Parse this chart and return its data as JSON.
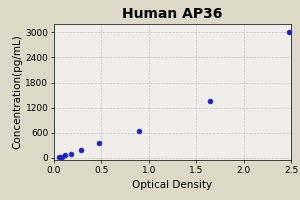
{
  "title": "Human AP36",
  "xlabel": "Optical Density",
  "ylabel": "Concentration(pg/mL)",
  "x_data": [
    0.05,
    0.08,
    0.12,
    0.18,
    0.28,
    0.47,
    0.9,
    1.65,
    2.48
  ],
  "y_data": [
    10,
    30,
    60,
    100,
    200,
    350,
    650,
    1350,
    3000
  ],
  "xlim": [
    0.0,
    2.5
  ],
  "ylim": [
    -50,
    3200
  ],
  "yticks": [
    0,
    600,
    1200,
    1800,
    2400,
    3000
  ],
  "ytick_labels": [
    "0",
    "600",
    "1200",
    "1800",
    "2400",
    "3000"
  ],
  "xticks": [
    0.0,
    0.5,
    1.0,
    1.5,
    2.0,
    2.5
  ],
  "xtick_labels": [
    "0.0",
    "0.5",
    "1.0",
    "1.5",
    "2.0",
    "2.5"
  ],
  "curve_color": "#cc0000",
  "dot_color": "#2222bb",
  "bg_color": "#ddd8c8",
  "plot_bg_color": "#f0eeea",
  "grid_color": "#bbbbbb",
  "title_fontsize": 10,
  "label_fontsize": 7.5,
  "tick_fontsize": 6.5
}
